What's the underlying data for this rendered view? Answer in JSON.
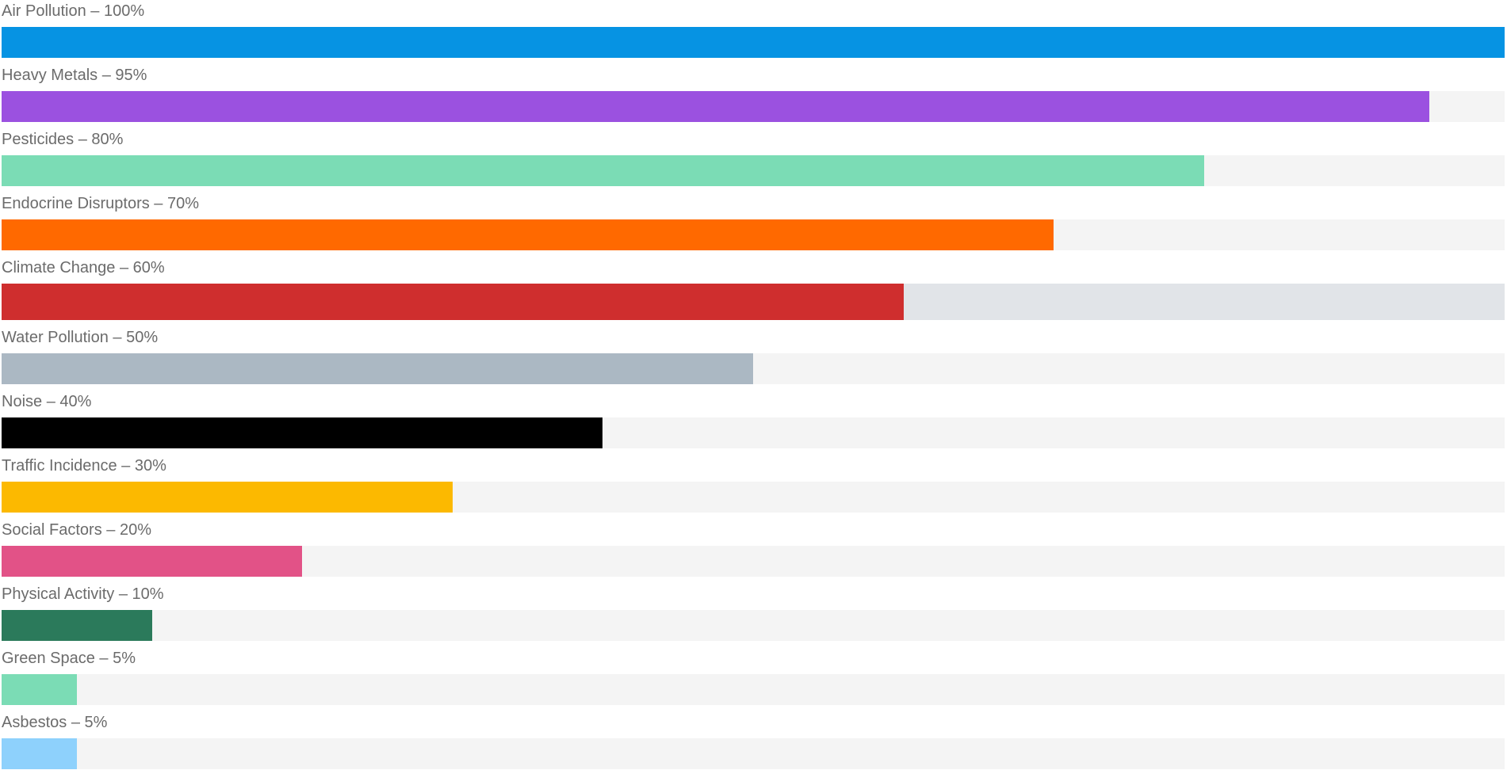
{
  "chart_data": {
    "type": "bar",
    "orientation": "horizontal",
    "xlim": [
      0,
      100
    ],
    "bars": [
      {
        "label": "Air Pollution – 100%",
        "category": "Air Pollution",
        "value": 100,
        "color": "#0693e3",
        "track": "#f4f4f4"
      },
      {
        "label": "Heavy Metals – 95%",
        "category": "Heavy Metals",
        "value": 95,
        "color": "#9b51e0",
        "track": "#f4f4f4"
      },
      {
        "label": "Pesticides – 80%",
        "category": "Pesticides",
        "value": 80,
        "color": "#7bdcb5",
        "track": "#f4f4f4"
      },
      {
        "label": "Endocrine Disruptors – 70%",
        "category": "Endocrine Disruptors",
        "value": 70,
        "color": "#ff6900",
        "track": "#f4f4f4"
      },
      {
        "label": "Climate Change – 60%",
        "category": "Climate Change",
        "value": 60,
        "color": "#cf2e2e",
        "track": "#e1e4e8"
      },
      {
        "label": "Water Pollution – 50%",
        "category": "Water Pollution",
        "value": 50,
        "color": "#abb8c3",
        "track": "#f4f4f4"
      },
      {
        "label": "Noise – 40%",
        "category": "Noise",
        "value": 40,
        "color": "#000000",
        "track": "#f4f4f4"
      },
      {
        "label": "Traffic Incidence – 30%",
        "category": "Traffic Incidence",
        "value": 30,
        "color": "#fcb900",
        "track": "#f4f4f4"
      },
      {
        "label": "Social Factors – 20%",
        "category": "Social Factors",
        "value": 20,
        "color": "#e25287",
        "track": "#f4f4f4"
      },
      {
        "label": "Physical Activity – 10%",
        "category": "Physical Activity",
        "value": 10,
        "color": "#2b7a5b",
        "track": "#f4f4f4"
      },
      {
        "label": "Green Space – 5%",
        "category": "Green Space",
        "value": 5,
        "color": "#7bdcb5",
        "track": "#f4f4f4"
      },
      {
        "label": "Asbestos – 5%",
        "category": "Asbestos",
        "value": 5,
        "color": "#8ed1fc",
        "track": "#f4f4f4"
      }
    ]
  }
}
